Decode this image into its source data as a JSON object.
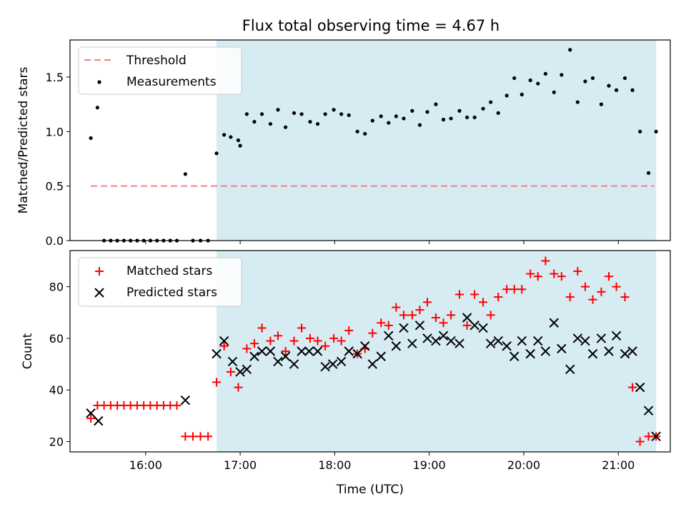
{
  "chart_data": {
    "title": "Flux total observing time = 4.67 h",
    "xlabel": "Time (UTC)",
    "xlim": [
      15.2,
      21.55
    ],
    "x_ticks": [
      16,
      17,
      18,
      19,
      20,
      21
    ],
    "x_tick_labels": [
      "16:00",
      "17:00",
      "18:00",
      "19:00",
      "20:00",
      "21:00"
    ],
    "shaded_interval": [
      16.75,
      21.4
    ],
    "colors": {
      "threshold": "#f08080",
      "measure": "#000000",
      "matched": "#ff0000",
      "predicted": "#000000",
      "shade": "#add8e6"
    },
    "panels": [
      {
        "type": "scatter",
        "ylabel": "Matched/Predicted stars",
        "ylim": [
          0,
          1.84
        ],
        "y_ticks": [
          0,
          0.5,
          1,
          1.5
        ],
        "y_tick_labels": [
          "0.0",
          "0.5",
          "1.0",
          "1.5"
        ],
        "legend": [
          "Threshold",
          "Measurements"
        ],
        "threshold": 0.5,
        "threshold_x": [
          15.42,
          21.38
        ],
        "x": [
          15.42,
          15.49,
          15.56,
          15.63,
          15.7,
          15.77,
          15.84,
          15.91,
          15.98,
          16.05,
          16.12,
          16.19,
          16.26,
          16.33,
          16.42,
          16.5,
          16.58,
          16.66,
          16.75,
          16.83,
          16.9,
          16.98,
          17.0,
          17.07,
          17.15,
          17.23,
          17.32,
          17.4,
          17.48,
          17.57,
          17.65,
          17.74,
          17.82,
          17.9,
          17.99,
          18.07,
          18.15,
          18.24,
          18.32,
          18.4,
          18.49,
          18.57,
          18.65,
          18.73,
          18.82,
          18.9,
          18.98,
          19.07,
          19.15,
          19.23,
          19.32,
          19.4,
          19.48,
          19.57,
          19.65,
          19.73,
          19.82,
          19.9,
          19.98,
          20.07,
          20.15,
          20.23,
          20.32,
          20.4,
          20.49,
          20.57,
          20.65,
          20.73,
          20.82,
          20.9,
          20.98,
          21.07,
          21.15,
          21.23,
          21.32,
          21.4
        ],
        "values": [
          0.94,
          1.22,
          0,
          0,
          0,
          0,
          0,
          0,
          0,
          0,
          0,
          0,
          0,
          0,
          0.61,
          0,
          0,
          0,
          0.8,
          0.97,
          0.95,
          0.92,
          0.87,
          1.16,
          1.09,
          1.16,
          1.07,
          1.2,
          1.04,
          1.17,
          1.16,
          1.09,
          1.07,
          1.16,
          1.2,
          1.16,
          1.15,
          1.0,
          0.98,
          1.1,
          1.14,
          1.08,
          1.14,
          1.12,
          1.19,
          1.06,
          1.18,
          1.25,
          1.11,
          1.12,
          1.19,
          1.13,
          1.13,
          1.21,
          1.27,
          1.17,
          1.33,
          1.49,
          1.34,
          1.47,
          1.44,
          1.53,
          1.36,
          1.52,
          1.75,
          1.27,
          1.46,
          1.49,
          1.25,
          1.42,
          1.38,
          1.49,
          1.38,
          1.0,
          0.62,
          1.0
        ]
      },
      {
        "type": "scatter",
        "ylabel": "Count",
        "ylim": [
          16,
          94
        ],
        "y_ticks": [
          20,
          40,
          60,
          80
        ],
        "y_tick_labels": [
          "20",
          "40",
          "60",
          "80"
        ],
        "legend": [
          "Matched stars",
          "Predicted stars"
        ],
        "series": [
          {
            "name": "Matched stars",
            "x": [
              15.42,
              15.49,
              15.56,
              15.63,
              15.7,
              15.77,
              15.84,
              15.91,
              15.98,
              16.05,
              16.12,
              16.19,
              16.26,
              16.33,
              16.42,
              16.5,
              16.58,
              16.66,
              16.75,
              16.83,
              16.9,
              16.98,
              17.07,
              17.15,
              17.23,
              17.32,
              17.4,
              17.48,
              17.57,
              17.65,
              17.74,
              17.82,
              17.9,
              17.99,
              18.07,
              18.15,
              18.24,
              18.32,
              18.4,
              18.49,
              18.57,
              18.65,
              18.73,
              18.82,
              18.9,
              18.98,
              19.07,
              19.15,
              19.23,
              19.32,
              19.4,
              19.48,
              19.57,
              19.65,
              19.73,
              19.82,
              19.9,
              19.98,
              20.07,
              20.15,
              20.23,
              20.32,
              20.4,
              20.49,
              20.57,
              20.65,
              20.73,
              20.82,
              20.9,
              20.98,
              21.07,
              21.15,
              21.23,
              21.32,
              21.4
            ],
            "values": [
              29,
              34,
              34,
              34,
              34,
              34,
              34,
              34,
              34,
              34,
              34,
              34,
              34,
              34,
              22,
              22,
              22,
              22,
              43,
              57,
              47,
              41,
              56,
              58,
              64,
              59,
              61,
              55,
              59,
              64,
              60,
              59,
              57,
              60,
              59,
              63,
              54,
              56,
              62,
              66,
              65,
              72,
              69,
              69,
              71,
              74,
              68,
              66,
              69,
              77,
              65,
              77,
              74,
              69,
              76,
              79,
              79,
              79,
              85,
              84,
              90,
              85,
              84,
              76,
              86,
              80,
              75,
              78,
              84,
              80,
              76,
              41,
              20,
              22,
              22
            ]
          },
          {
            "name": "Predicted stars",
            "x": [
              15.42,
              15.5,
              16.42,
              16.75,
              16.83,
              16.92,
              17.0,
              17.07,
              17.15,
              17.23,
              17.32,
              17.4,
              17.48,
              17.57,
              17.65,
              17.73,
              17.82,
              17.9,
              17.98,
              18.07,
              18.15,
              18.24,
              18.32,
              18.4,
              18.49,
              18.57,
              18.65,
              18.73,
              18.82,
              18.9,
              18.98,
              19.07,
              19.15,
              19.23,
              19.32,
              19.4,
              19.48,
              19.57,
              19.65,
              19.73,
              19.82,
              19.9,
              19.98,
              20.07,
              20.15,
              20.23,
              20.32,
              20.4,
              20.49,
              20.57,
              20.65,
              20.73,
              20.82,
              20.9,
              20.98,
              21.07,
              21.15,
              21.23,
              21.32,
              21.4
            ],
            "values": [
              31,
              28,
              36,
              54,
              59,
              51,
              47,
              48,
              53,
              55,
              55,
              51,
              53,
              50,
              55,
              55,
              55,
              49,
              50,
              51,
              55,
              54,
              57,
              50,
              53,
              61,
              57,
              64,
              58,
              65,
              60,
              59,
              61,
              59,
              58,
              68,
              65,
              64,
              58,
              59,
              57,
              53,
              59,
              54,
              59,
              55,
              66,
              56,
              48,
              60,
              59,
              54,
              60,
              55,
              61,
              54,
              55,
              41,
              32,
              22
            ]
          }
        ]
      }
    ]
  }
}
